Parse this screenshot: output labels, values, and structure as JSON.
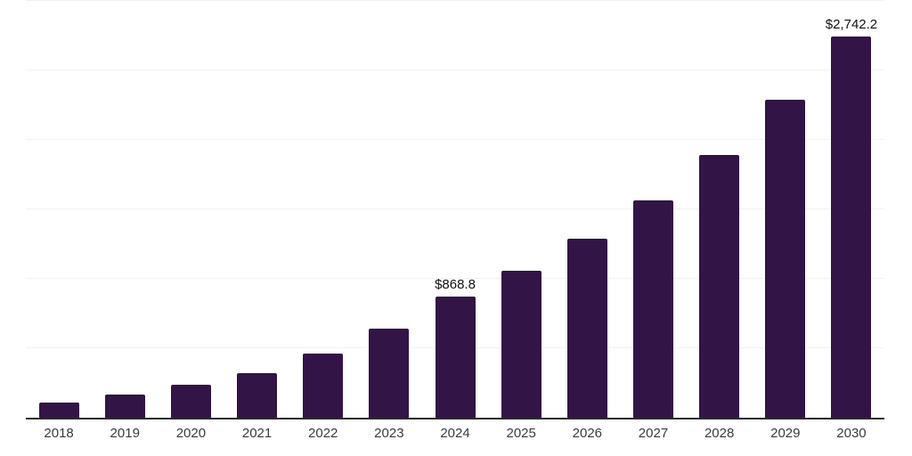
{
  "chart_data": {
    "type": "bar",
    "categories": [
      "2018",
      "2019",
      "2020",
      "2021",
      "2022",
      "2023",
      "2024",
      "2025",
      "2026",
      "2027",
      "2028",
      "2029",
      "2030"
    ],
    "values": [
      110,
      168,
      237,
      323,
      462,
      642,
      868.8,
      1058,
      1286,
      1564,
      1894,
      2289,
      2742.2
    ],
    "value_labels": {
      "2024": "$868.8",
      "2030": "$2,742.2"
    },
    "ylim": [
      0,
      3000
    ],
    "gridline_step": 500,
    "grid": "horizontal",
    "legend": "none",
    "bar_color": "#321446"
  },
  "colors": {
    "bar": "#321446",
    "gridline": "#f2f2f2",
    "axis_line": "#2b2b2b",
    "tick_label": "#3a3a3a",
    "value_label": "#111111",
    "background": "#ffffff"
  }
}
